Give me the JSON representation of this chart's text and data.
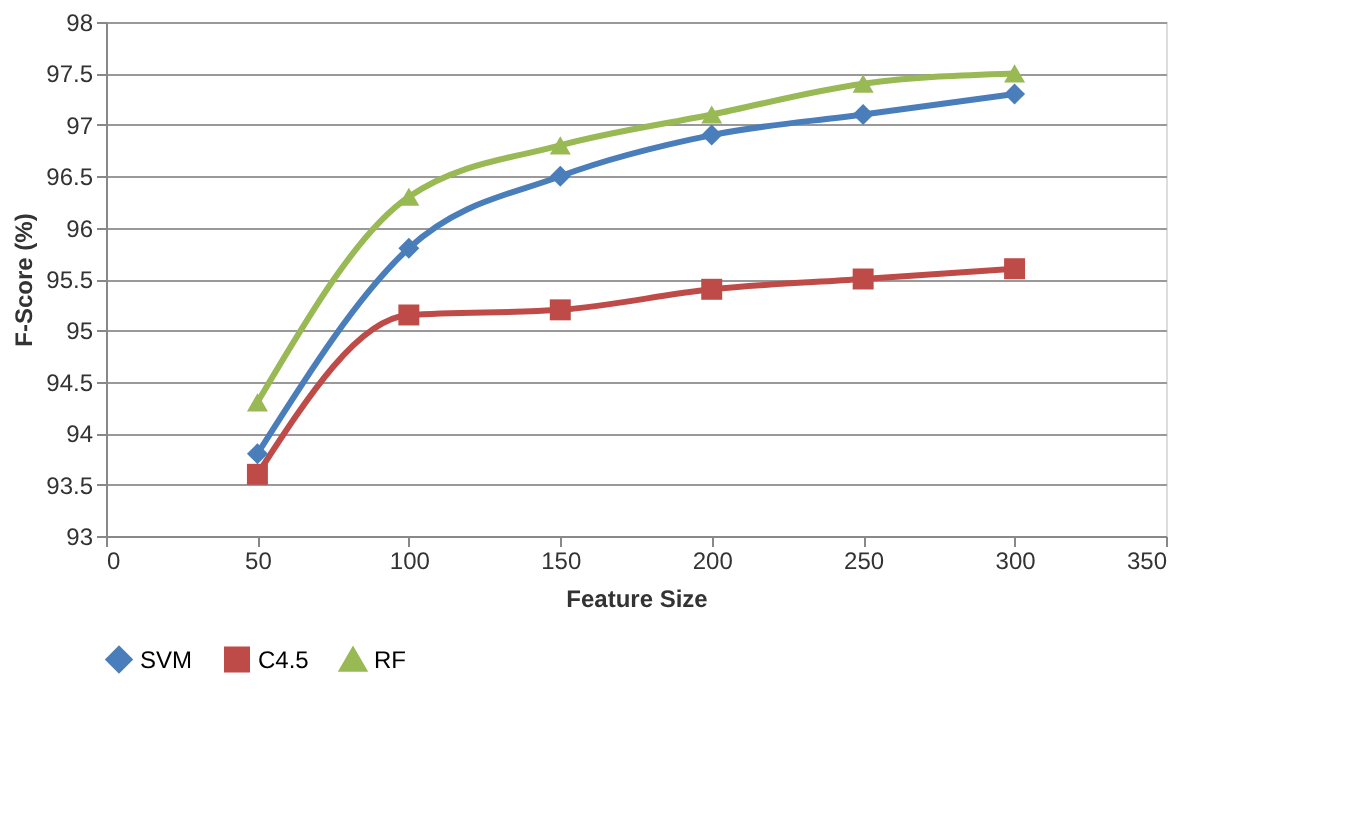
{
  "chart_data": {
    "type": "line",
    "xlabel": "Feature Size",
    "ylabel": "F-Score (%)",
    "x": [
      50,
      100,
      150,
      200,
      250,
      300
    ],
    "series": [
      {
        "name": "SVM",
        "color": "#4a7ebb",
        "marker": "diamond",
        "values": [
          93.8,
          95.8,
          96.5,
          96.9,
          97.1,
          97.3
        ]
      },
      {
        "name": "C4.5",
        "color": "#be4b48",
        "marker": "square",
        "values": [
          93.6,
          95.15,
          95.2,
          95.4,
          95.5,
          95.6
        ]
      },
      {
        "name": "RF",
        "color": "#98b954",
        "marker": "triangle",
        "values": [
          94.3,
          96.3,
          96.8,
          97.1,
          97.4,
          97.5
        ]
      }
    ],
    "xlim": [
      0,
      350
    ],
    "xticks": [
      0,
      50,
      100,
      150,
      200,
      250,
      300,
      350
    ],
    "ylim": [
      93,
      98
    ],
    "yticks": [
      93,
      93.5,
      94,
      94.5,
      95,
      95.5,
      96,
      96.5,
      97,
      97.5,
      98
    ],
    "grid": "y",
    "legend": "bottom",
    "line_style": "solid"
  }
}
